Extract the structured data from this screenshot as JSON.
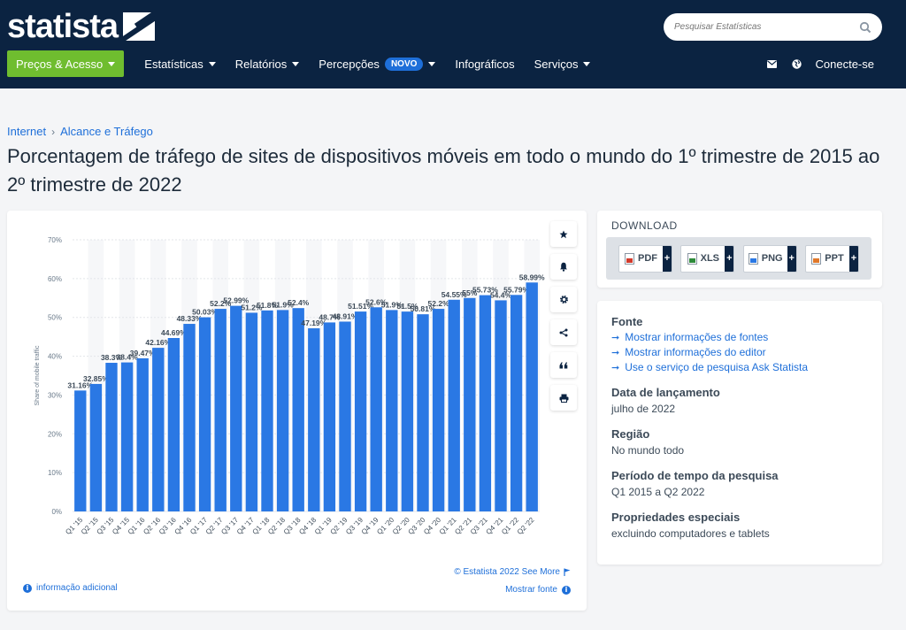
{
  "header": {
    "logo": "statista",
    "search_placeholder": "Pesquisar Estatísticas",
    "nav": [
      {
        "label": "Preços & Acesso"
      },
      {
        "label": "Estatísticas"
      },
      {
        "label": "Relatórios"
      },
      {
        "label": "Percepções",
        "badge": "NOVO"
      },
      {
        "label": "Infográficos"
      },
      {
        "label": "Serviços"
      }
    ],
    "login": "Conecte-se"
  },
  "breadcrumb": [
    "Internet",
    "Alcance e Tráfego"
  ],
  "title": "Porcentagem de tráfego de sites de dispositivos móveis em todo o mundo do 1º trimestre de 2015 ao 2º trimestre de 2022",
  "chart_card": {
    "credit": "© Estatista 2022 See More",
    "info_link": "informação adicional",
    "show_source": "Mostrar fonte"
  },
  "download": {
    "title": "DOWNLOAD",
    "buttons": [
      "PDF",
      "XLS",
      "PNG",
      "PPT"
    ]
  },
  "info": {
    "source_heading": "Fonte",
    "source_links": [
      "Mostrar informações de fontes",
      "Mostrar informações do editor",
      "Use o serviço de pesquisa Ask Statista"
    ],
    "release_heading": "Data de lançamento",
    "release_value": "julho de 2022",
    "region_heading": "Região",
    "region_value": "No mundo todo",
    "period_heading": "Período de tempo da pesquisa",
    "period_value": "Q1 2015 a Q2 2022",
    "special_heading": "Propriedades especiais",
    "special_value": "excluindo computadores e tablets"
  },
  "colors": {
    "bar": "#2a78e4",
    "header": "#0b2341",
    "accent": "#6fbd2f",
    "link": "#1e6fd9"
  },
  "chart_data": {
    "type": "bar",
    "ylabel": "Share of mobile traffic",
    "ylim": [
      0,
      70
    ],
    "yticks": [
      "0%",
      "10%",
      "20%",
      "30%",
      "40%",
      "50%",
      "60%",
      "70%"
    ],
    "grid": true,
    "categories": [
      "Q1 '15",
      "Q2 '15",
      "Q3 '15",
      "Q4 '15",
      "Q1 '16",
      "Q2 '16",
      "Q3 '16",
      "Q4 '16",
      "Q1 '17",
      "Q2 '17",
      "Q3 '17",
      "Q4 '17",
      "Q1 '18",
      "Q2 '18",
      "Q3 '18",
      "Q4 '18",
      "Q1 '19",
      "Q2 '19",
      "Q3 '19",
      "Q4 '19",
      "Q1 '20",
      "Q2 '20",
      "Q3 '20",
      "Q4 '20",
      "Q1 '21",
      "Q2 '21",
      "Q3 '21",
      "Q4 '21",
      "Q1 '22",
      "Q2 '22"
    ],
    "values": [
      31.16,
      32.85,
      38.3,
      38.4,
      39.47,
      42.16,
      44.69,
      48.33,
      50.03,
      52.2,
      52.99,
      51.2,
      51.8,
      51.9,
      52.4,
      47.19,
      48.7,
      48.91,
      51.51,
      52.6,
      51.9,
      51.5,
      50.81,
      52.2,
      54.55,
      55.0,
      55.73,
      54.4,
      55.79,
      58.99
    ],
    "data_labels": [
      "31.16%",
      "32.85%",
      "38.3%",
      "38.4%",
      "39.47%",
      "42.16%",
      "44.69%",
      "48.33%",
      "50.03%",
      "52.2%",
      "52.99%",
      "51.2%",
      "51.8%",
      "51.9%",
      "52.4%",
      "47.19%",
      "48.7%",
      "48.91%",
      "51.51%",
      "52.6%",
      "51.9%",
      "51.5%",
      "50.81%",
      "52.2%",
      "54.55%",
      "55%",
      "55.73%",
      "54.4%",
      "55.79%",
      "58.99%"
    ]
  }
}
